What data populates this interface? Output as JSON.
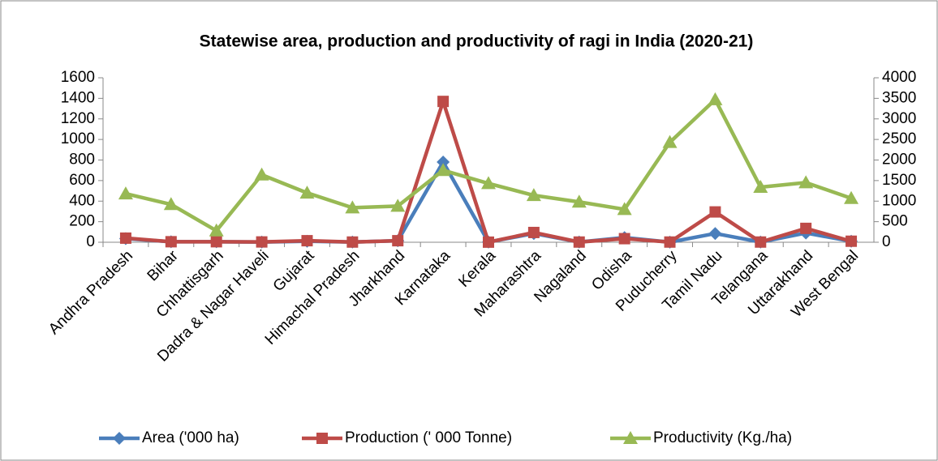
{
  "chart_data": {
    "type": "line",
    "title": "Statewise area, production and productivity of ragi in India (2020-21)",
    "categories": [
      "Andhra Pradesh",
      "Bihar",
      "Chhattisgarh",
      "Dadra & Nagar Haveli",
      "Gujarat",
      "Himachal Pradesh",
      "Jharkhand",
      "Karnataka",
      "Kerala",
      "Maharashtra",
      "Nagaland",
      "Odisha",
      "Puducherry",
      "Tamil Nadu",
      "Telangana",
      "Uttarakhand",
      "West Bengal"
    ],
    "series": [
      {
        "name": "Area ('000 ha)",
        "color": "#4a7ebb",
        "marker": "diamond",
        "values": [
          35,
          5,
          5,
          2,
          10,
          2,
          15,
          780,
          2,
          85,
          2,
          45,
          1,
          85,
          2,
          90,
          10
        ]
      },
      {
        "name": "Production (' 000 Tonne)",
        "color": "#be4b48",
        "marker": "square",
        "values": [
          40,
          5,
          5,
          3,
          15,
          2,
          15,
          1370,
          1,
          95,
          2,
          35,
          2,
          295,
          2,
          135,
          10
        ]
      },
      {
        "name": "Productivity (Kg./ha)",
        "color": "#98b954",
        "marker": "triangle",
        "axis": "y2",
        "values": [
          1180,
          920,
          280,
          1640,
          1200,
          840,
          880,
          1750,
          1430,
          1140,
          980,
          800,
          2430,
          3470,
          1340,
          1450,
          1070
        ]
      }
    ],
    "ylim": [
      0,
      1600
    ],
    "yticks": [
      0,
      200,
      400,
      600,
      800,
      1000,
      1200,
      1400,
      1600
    ],
    "y2lim": [
      0,
      4000
    ],
    "y2ticks": [
      0,
      500,
      1000,
      1500,
      2000,
      2500,
      3000,
      3500,
      4000
    ],
    "grid": false,
    "legend": "bottom"
  }
}
